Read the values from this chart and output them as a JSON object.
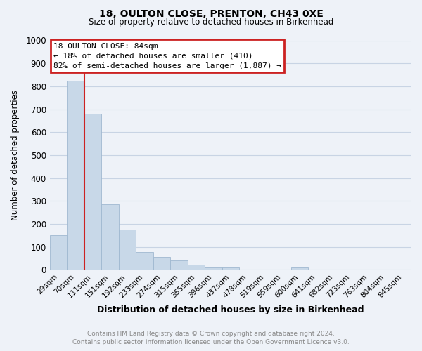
{
  "title": "18, OULTON CLOSE, PRENTON, CH43 0XE",
  "subtitle": "Size of property relative to detached houses in Birkenhead",
  "xlabel": "Distribution of detached houses by size in Birkenhead",
  "ylabel": "Number of detached properties",
  "bar_labels": [
    "29sqm",
    "70sqm",
    "111sqm",
    "151sqm",
    "192sqm",
    "233sqm",
    "274sqm",
    "315sqm",
    "355sqm",
    "396sqm",
    "437sqm",
    "478sqm",
    "519sqm",
    "559sqm",
    "600sqm",
    "641sqm",
    "682sqm",
    "723sqm",
    "763sqm",
    "804sqm",
    "845sqm"
  ],
  "bar_values": [
    150,
    825,
    680,
    285,
    175,
    78,
    55,
    42,
    22,
    12,
    10,
    0,
    0,
    0,
    10,
    0,
    0,
    0,
    0,
    0,
    0
  ],
  "bar_color": "#c8d8e8",
  "bar_edge_color": "#a0b8d0",
  "annotation_text_line1": "18 OULTON CLOSE: 84sqm",
  "annotation_text_line2": "← 18% of detached houses are smaller (410)",
  "annotation_text_line3": "82% of semi-detached houses are larger (1,887) →",
  "annotation_box_color": "#ffffff",
  "annotation_box_edge": "#cc2222",
  "vline_color": "#cc2222",
  "vline_x": 1.5,
  "footer_line1": "Contains HM Land Registry data © Crown copyright and database right 2024.",
  "footer_line2": "Contains public sector information licensed under the Open Government Licence v3.0.",
  "ylim": [
    0,
    1000
  ],
  "yticks": [
    0,
    100,
    200,
    300,
    400,
    500,
    600,
    700,
    800,
    900,
    1000
  ],
  "grid_color": "#c8d4e4",
  "background_color": "#eef2f8"
}
